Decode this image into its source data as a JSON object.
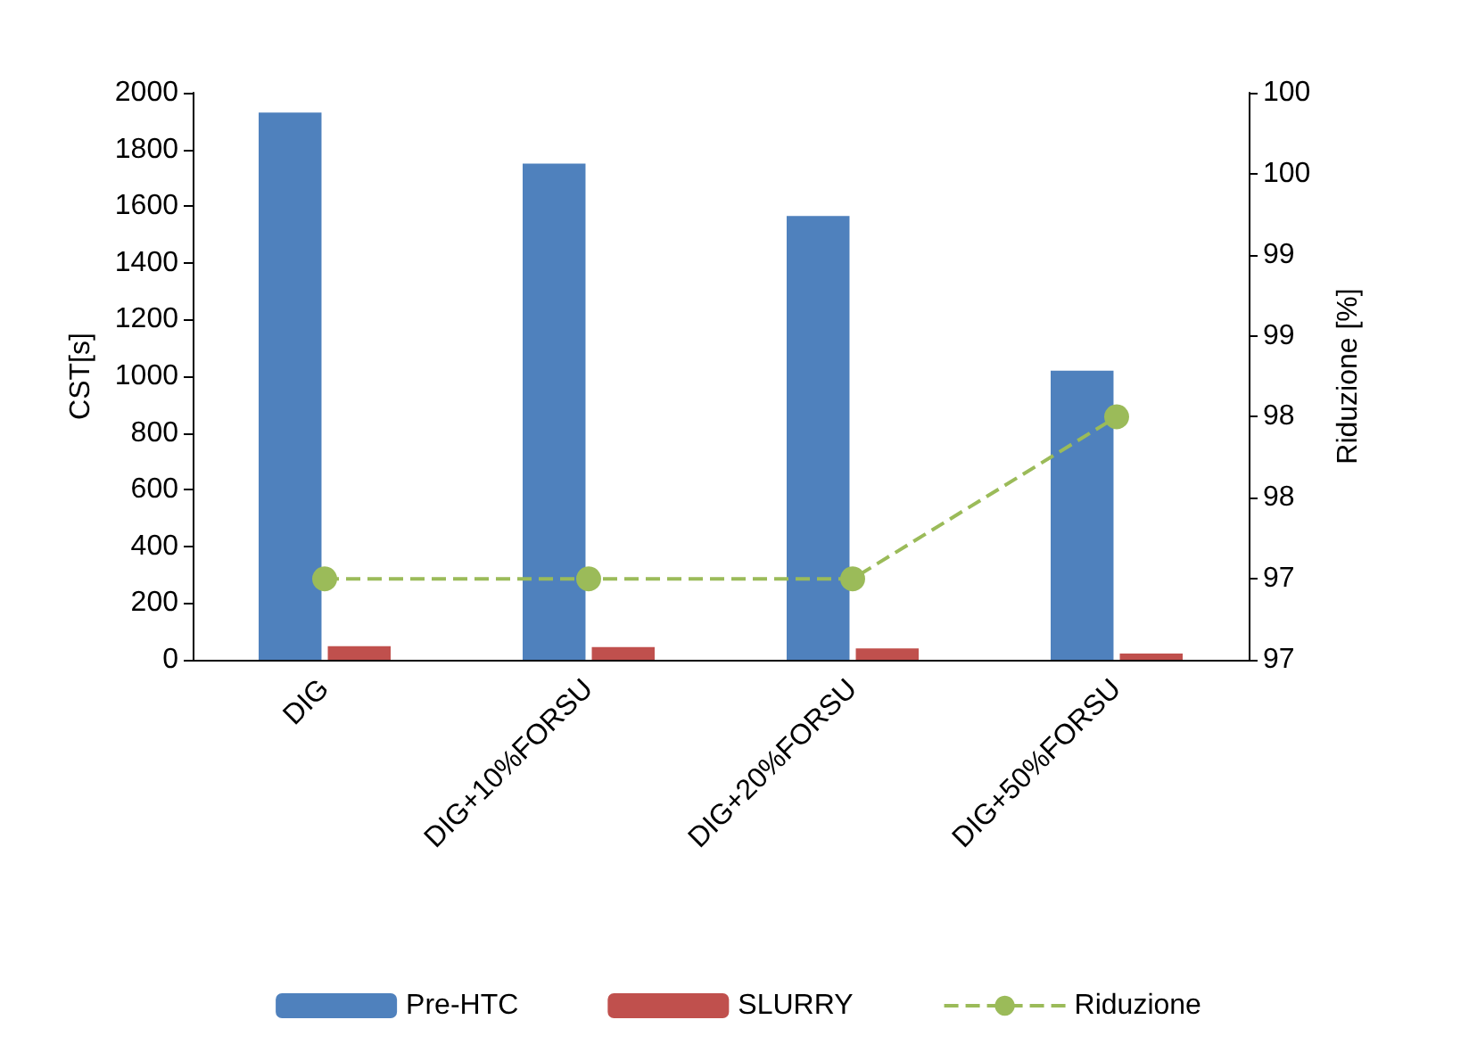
{
  "chart_data": {
    "type": "bar",
    "ylabel": "CST[s]",
    "y2label": "Riduzione [%]",
    "categories": [
      "DIG",
      "DIG+10%FORSU",
      "DIG+20%FORSU",
      "DIG+50%FORSU"
    ],
    "series": [
      {
        "name": "Pre-HTC",
        "color": "#4f81bd",
        "values": [
          1930,
          1750,
          1565,
          1020
        ]
      },
      {
        "name": "SLURRY",
        "color": "#c0504d",
        "values": [
          48,
          45,
          40,
          22
        ]
      },
      {
        "name": "Riduzione",
        "type": "line",
        "axis": "y2",
        "color": "#9bbb59",
        "marker": "circle",
        "line_style": "dashed",
        "values": [
          97.0,
          97.0,
          97.0,
          98.0
        ]
      }
    ],
    "ylim": [
      0,
      2000
    ],
    "yticks": [
      0,
      200,
      400,
      600,
      800,
      1000,
      1200,
      1400,
      1600,
      1800,
      2000
    ],
    "y2lim": [
      96.5,
      100
    ],
    "y2ticks": [
      {
        "value": 96.5,
        "label": "97"
      },
      {
        "value": 97.0,
        "label": "97"
      },
      {
        "value": 97.5,
        "label": "98"
      },
      {
        "value": 98.0,
        "label": "98"
      },
      {
        "value": 98.5,
        "label": "99"
      },
      {
        "value": 99.0,
        "label": "99"
      },
      {
        "value": 99.5,
        "label": "100"
      },
      {
        "value": 100,
        "label": "100"
      }
    ],
    "grid": false,
    "legend": "bottom"
  }
}
